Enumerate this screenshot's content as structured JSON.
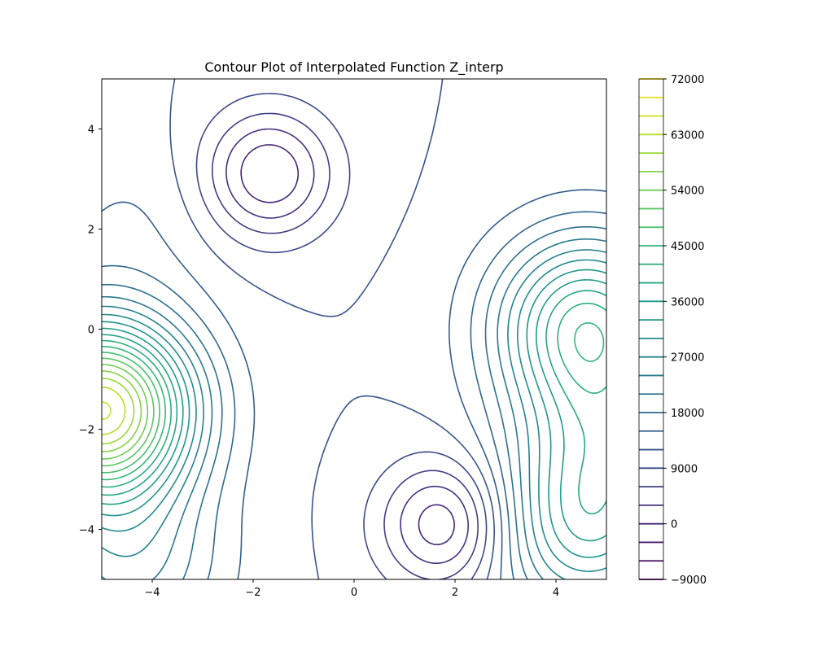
{
  "chart_data": {
    "type": "contour",
    "title": "Contour Plot of Interpolated Function Z_interp",
    "xlabel": "",
    "ylabel": "",
    "xlim": [
      -5,
      5
    ],
    "ylim": [
      -5,
      5
    ],
    "x_ticks": [
      -4,
      -2,
      0,
      2,
      4
    ],
    "y_ticks": [
      -4,
      -2,
      0,
      2,
      4
    ],
    "x_tick_labels": [
      "−4",
      "−2",
      "0",
      "2",
      "4"
    ],
    "y_tick_labels": [
      "−4",
      "−2",
      "0",
      "2",
      "4"
    ],
    "colormap": "viridis",
    "levels": [
      -9000,
      -6000,
      -3000,
      0,
      3000,
      6000,
      9000,
      12000,
      15000,
      18000,
      21000,
      24000,
      27000,
      30000,
      33000,
      36000,
      39000,
      42000,
      45000,
      48000,
      51000,
      54000,
      57000,
      60000,
      63000,
      66000,
      69000,
      72000
    ],
    "colorbar": {
      "tick_values": [
        -9000,
        0,
        9000,
        18000,
        27000,
        36000,
        45000,
        54000,
        63000,
        72000
      ],
      "tick_labels": [
        "−9000",
        "0",
        "9000",
        "18000",
        "27000",
        "36000",
        "45000",
        "54000",
        "63000",
        "72000"
      ]
    },
    "features": [
      {
        "kind": "peak",
        "x": -5.0,
        "y": -1.6,
        "approx_max": 66000
      },
      {
        "kind": "peak",
        "x": 4.6,
        "y": 0.1,
        "approx_max": 42000
      },
      {
        "kind": "peak",
        "x": 4.6,
        "y": -4.0,
        "approx_max": 33000
      },
      {
        "kind": "peak",
        "x": -4.4,
        "y": -4.7,
        "approx_max": 24000
      },
      {
        "kind": "peak",
        "x": 5.0,
        "y": -2.1,
        "approx_max": 27000
      },
      {
        "kind": "peak",
        "x": -4.4,
        "y": 2.2,
        "approx_max": 15000
      },
      {
        "kind": "trough",
        "x": 1.8,
        "y": -3.9,
        "approx_min": -3000
      },
      {
        "kind": "trough",
        "x": -1.7,
        "y": 3.1,
        "approx_min": -3000
      }
    ]
  }
}
